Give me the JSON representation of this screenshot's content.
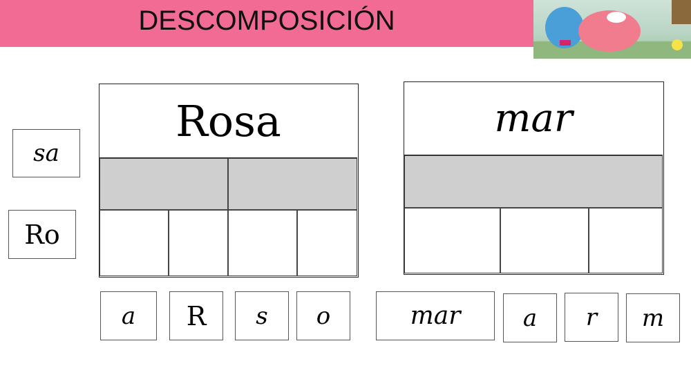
{
  "header": {
    "title": "DESCOMPOSICIÓN",
    "banner_color": "#f26b94",
    "illustration": "two-furry-monsters-illustration"
  },
  "left_tiles": [
    "sa",
    "Ro"
  ],
  "boards": [
    {
      "word": "Rosa",
      "syllable_slots": 2,
      "letter_slots": 4
    },
    {
      "word": "mar",
      "syllable_slots": 1,
      "letter_slots": 3
    }
  ],
  "bottom_tiles": [
    "a",
    "R",
    "s",
    "o",
    "mar",
    "a",
    "r",
    "m"
  ]
}
